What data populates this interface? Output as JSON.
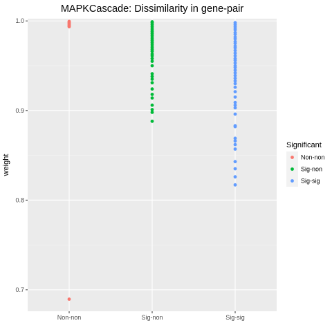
{
  "chart_data": {
    "type": "scatter",
    "title": "MAPKCascade: Dissimilarity in gene-pair",
    "xlabel": "",
    "ylabel": "weight",
    "categories": [
      "Non-non",
      "Sig-non",
      "Sig-sig"
    ],
    "ylim": [
      0.676,
      1.0025
    ],
    "yticks": [
      0.7,
      0.8,
      0.9,
      1.0
    ],
    "ytick_labels": [
      "0.7",
      "0.8",
      "0.9",
      "1.0"
    ],
    "grid": true,
    "legend": {
      "title": "Significant",
      "placement": "right"
    },
    "series": [
      {
        "name": "Non-non",
        "color": "#F8766D",
        "category": "Non-non",
        "values": [
          0.6895,
          0.9935,
          0.9945,
          0.9955,
          0.9965,
          0.9975,
          0.9985,
          0.9995
        ]
      },
      {
        "name": "Sig-non",
        "color": "#00BA38",
        "category": "Sig-non",
        "values": [
          0.888,
          0.898,
          0.901,
          0.906,
          0.914,
          0.918,
          0.924,
          0.931,
          0.935,
          0.938,
          0.941,
          0.95,
          0.955,
          0.958,
          0.961,
          0.963,
          0.966,
          0.968,
          0.97,
          0.972,
          0.974,
          0.976,
          0.978,
          0.98,
          0.982,
          0.984,
          0.986,
          0.988,
          0.99,
          0.992,
          0.994,
          0.996,
          0.998,
          0.999
        ]
      },
      {
        "name": "Sig-sig",
        "color": "#619CFF",
        "category": "Sig-sig",
        "values": [
          0.817,
          0.826,
          0.835,
          0.843,
          0.857,
          0.862,
          0.866,
          0.869,
          0.882,
          0.883,
          0.896,
          0.903,
          0.906,
          0.909,
          0.915,
          0.921,
          0.926,
          0.93,
          0.933,
          0.936,
          0.939,
          0.942,
          0.945,
          0.948,
          0.95,
          0.953,
          0.956,
          0.958,
          0.961,
          0.964,
          0.967,
          0.97,
          0.972,
          0.975,
          0.977,
          0.98,
          0.982,
          0.985,
          0.987,
          0.99,
          0.992,
          0.994,
          0.996,
          0.998
        ]
      }
    ]
  }
}
